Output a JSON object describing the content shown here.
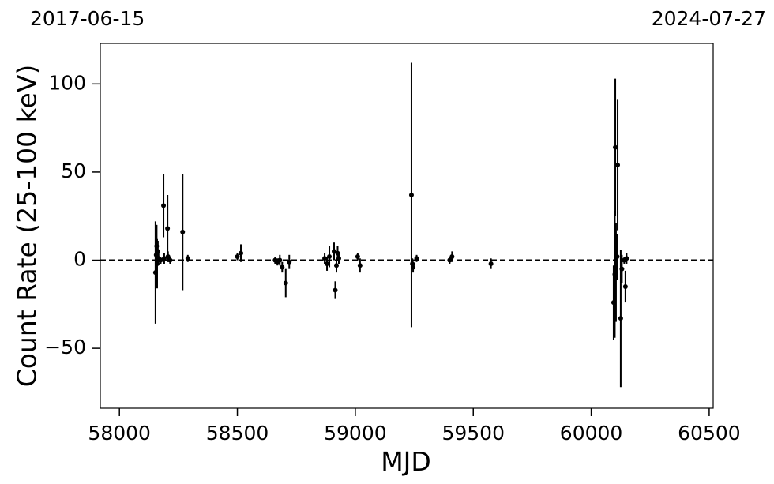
{
  "chart_data": {
    "type": "errorbar",
    "xlabel": "MJD",
    "ylabel": "Count Rate (25-100 keV)",
    "x": [
      58153,
      58156,
      58158,
      58160,
      58163,
      58166,
      58175,
      58187,
      58190,
      58204,
      58206,
      58215,
      58268,
      58290,
      58500,
      58515,
      58660,
      58670,
      58680,
      58690,
      58705,
      58720,
      58870,
      58880,
      58890,
      58910,
      58915,
      58920,
      58925,
      58930,
      59010,
      59020,
      59238,
      59242,
      59245,
      59260,
      59400,
      59410,
      59575,
      60095,
      60100,
      60105,
      60102,
      60112,
      60110,
      60125,
      60130,
      60145,
      60150,
      60140
    ],
    "y": [
      -7,
      3,
      8,
      -2,
      5,
      1,
      0,
      31,
      1,
      18,
      2,
      0,
      16,
      1,
      2,
      4,
      0,
      -1,
      0,
      -4,
      -13,
      -1,
      1,
      -2,
      2,
      5,
      -17,
      -3,
      4,
      1,
      2,
      -3,
      37,
      -2,
      -4,
      1,
      0,
      2,
      -2,
      -24,
      -8,
      -7,
      64,
      54,
      2,
      -33,
      -5,
      -15,
      1,
      0
    ],
    "yerr": [
      29,
      17,
      12,
      14,
      6,
      3,
      2,
      18,
      3,
      19,
      3,
      2,
      33,
      2,
      2,
      5,
      2,
      2,
      3,
      3,
      8,
      4,
      3,
      4,
      6,
      5,
      5,
      4,
      4,
      3,
      2,
      4,
      75,
      3,
      3,
      2,
      2,
      3,
      3,
      21,
      36,
      28,
      39,
      37,
      13,
      39,
      8,
      9,
      3,
      2
    ],
    "color": "#000000",
    "hline": 0,
    "xlim": [
      57919,
      60517
    ],
    "xticks": [
      58000,
      58500,
      59000,
      59500,
      60000,
      60500
    ],
    "ylim": [
      -84,
      123
    ],
    "yticks": [
      {
        "value": -50,
        "label": "−50"
      },
      0,
      50,
      100
    ],
    "x2ticks": [
      {
        "value": 57919,
        "label": "2017-06-15"
      },
      {
        "value": 60517,
        "label": "2024-07-27"
      }
    ]
  }
}
